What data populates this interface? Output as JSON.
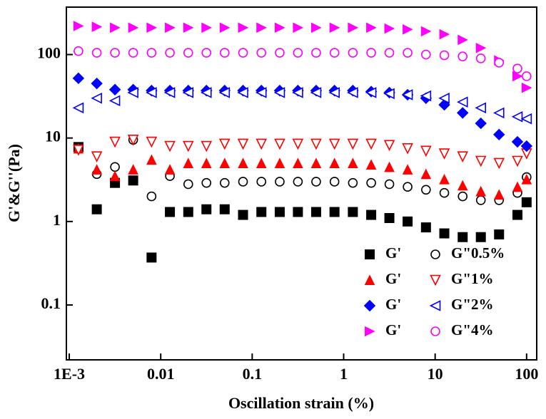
{
  "chart_data": {
    "type": "scatter",
    "xlabel": "Oscillation strain (%)",
    "ylabel": "G'&G''(Pa)",
    "xscale": "log",
    "yscale": "log",
    "xlim": [
      0.00093,
      129
    ],
    "ylim": [
      0.022,
      370
    ],
    "xticks": [
      {
        "value": 0.001,
        "label": "1E-3"
      },
      0.01,
      0.1,
      1,
      10,
      100
    ],
    "yticks": [
      0.1,
      1,
      10,
      100
    ],
    "legend": "lower right",
    "x": [
      0.00126,
      0.002,
      0.00316,
      0.005,
      0.00794,
      0.0126,
      0.02,
      0.0316,
      0.05,
      0.0794,
      0.126,
      0.2,
      0.316,
      0.5,
      0.794,
      1.26,
      2,
      3.16,
      5,
      7.94,
      12.6,
      20,
      31.6,
      50,
      79.4,
      100
    ],
    "series": [
      {
        "name": "G'",
        "color": "#000000",
        "marker": "square",
        "filled": true,
        "values": [
          7.8,
          1.4,
          2.9,
          3.1,
          0.37,
          1.3,
          1.3,
          1.4,
          1.4,
          1.2,
          1.3,
          1.3,
          1.3,
          1.3,
          1.3,
          1.3,
          1.2,
          1.1,
          1,
          0.85,
          0.72,
          0.65,
          0.65,
          0.7,
          1.2,
          1.7
        ]
      },
      {
        "name": "G\"0.5%",
        "color": "#000000",
        "marker": "circle",
        "filled": false,
        "values": [
          7.5,
          3.7,
          4.5,
          9.5,
          2.0,
          3.5,
          2.8,
          2.9,
          2.9,
          3,
          3,
          3,
          3,
          3,
          3,
          2.9,
          2.9,
          2.8,
          2.6,
          2.4,
          2.2,
          2,
          1.8,
          1.8,
          2.2,
          3.4
        ]
      },
      {
        "name": "G'",
        "color": "#ff0000",
        "marker": "triangle-up",
        "filled": true,
        "values": [
          7.5,
          4.2,
          3.5,
          4.2,
          5.5,
          4.2,
          5,
          5,
          5,
          5,
          5,
          5,
          5,
          5,
          5,
          5,
          4.8,
          4.5,
          4.2,
          3.7,
          3.2,
          2.7,
          2.3,
          2.1,
          2.6,
          3.2
        ]
      },
      {
        "name": "G\"1%",
        "color": "#ff0000",
        "marker": "triangle-down",
        "filled": false,
        "values": [
          7.2,
          6,
          9,
          9.5,
          9,
          8,
          8,
          8,
          8.5,
          8.5,
          8.5,
          8.5,
          8.5,
          8.5,
          8.5,
          8.5,
          8.5,
          8.2,
          7.5,
          7,
          6.5,
          6,
          5.3,
          5,
          5.3,
          6.5
        ]
      },
      {
        "name": "G'",
        "color": "#0000ff",
        "marker": "diamond",
        "filled": true,
        "values": [
          52,
          45,
          38,
          38,
          37,
          37,
          37,
          37,
          37,
          37,
          37,
          37,
          37,
          37,
          37,
          37,
          36,
          35,
          33,
          30,
          25,
          20,
          15,
          11,
          9,
          8
        ]
      },
      {
        "name": "G\"2%",
        "color": "#0000ff",
        "marker": "triangle-left",
        "filled": false,
        "values": [
          23,
          30,
          28,
          35,
          35,
          35,
          35,
          35,
          35,
          35,
          35,
          35,
          35,
          35,
          35,
          35,
          35,
          34,
          33,
          32,
          30,
          27,
          23,
          20,
          18,
          17
        ]
      },
      {
        "name": "G'",
        "color": "#ff00ff",
        "marker": "triangle-right",
        "filled": true,
        "values": [
          220,
          215,
          210,
          210,
          210,
          210,
          210,
          210,
          210,
          210,
          210,
          210,
          210,
          210,
          210,
          210,
          210,
          205,
          200,
          190,
          175,
          150,
          120,
          85,
          55,
          40
        ]
      },
      {
        "name": "G\"4%",
        "color": "#ff00ff",
        "marker": "circle",
        "filled": false,
        "values": [
          110,
          105,
          105,
          105,
          105,
          105,
          105,
          105,
          105,
          105,
          105,
          105,
          105,
          105,
          105,
          105,
          105,
          105,
          105,
          100,
          98,
          95,
          90,
          80,
          68,
          55
        ]
      }
    ]
  }
}
